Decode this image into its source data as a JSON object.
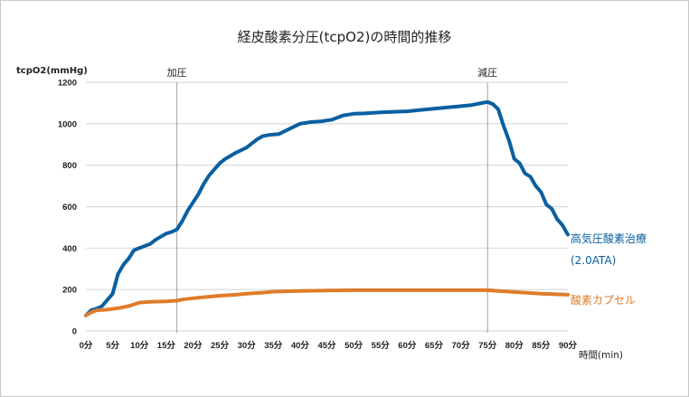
{
  "chart_data": {
    "type": "line",
    "title": "経皮酸素分圧(tcpO2)の時間的推移",
    "ylabel": "tcpO2(mmHg)",
    "xlabel": "時間(min)",
    "ylim": [
      0,
      1200
    ],
    "xlim": [
      0,
      90
    ],
    "yticks": [
      0,
      200,
      400,
      600,
      800,
      1000,
      1200
    ],
    "xticks": [
      0,
      5,
      10,
      15,
      20,
      25,
      30,
      35,
      40,
      45,
      50,
      55,
      60,
      65,
      70,
      75,
      80,
      85,
      90
    ],
    "xtick_labels": [
      "0分",
      "5分",
      "10分",
      "15分",
      "20分",
      "25分",
      "30分",
      "35分",
      "40分",
      "45分",
      "50分",
      "55分",
      "60分",
      "65分",
      "70分",
      "75分",
      "80分",
      "85分",
      "90分"
    ],
    "grid": true,
    "annotations": [
      {
        "label": "加圧",
        "x": 17
      },
      {
        "label": "減圧",
        "x": 75
      }
    ],
    "series": [
      {
        "name": "高気圧酸素治療",
        "name_line2": "(2.0ATA)",
        "color": "#0a5fa0",
        "x": [
          0,
          1,
          2,
          3,
          5,
          6,
          7,
          8,
          9,
          10,
          12,
          13,
          14,
          15,
          16,
          17,
          18,
          19,
          20,
          21,
          22,
          23,
          24,
          25,
          26,
          27,
          28,
          30,
          31,
          32,
          33,
          34,
          35,
          36,
          38,
          40,
          42,
          44,
          46,
          48,
          50,
          52,
          55,
          58,
          60,
          62,
          64,
          66,
          68,
          70,
          72,
          74,
          75,
          76,
          77,
          78,
          79,
          80,
          81,
          82,
          83,
          84,
          85,
          86,
          87,
          88,
          89,
          90
        ],
        "values": [
          75,
          100,
          108,
          120,
          180,
          275,
          320,
          350,
          390,
          400,
          420,
          440,
          455,
          470,
          478,
          490,
          530,
          580,
          620,
          660,
          710,
          750,
          780,
          810,
          830,
          845,
          860,
          885,
          905,
          925,
          940,
          945,
          948,
          950,
          975,
          1000,
          1008,
          1012,
          1020,
          1040,
          1048,
          1050,
          1055,
          1058,
          1060,
          1065,
          1070,
          1075,
          1080,
          1085,
          1090,
          1100,
          1105,
          1095,
          1070,
          990,
          920,
          830,
          810,
          760,
          745,
          700,
          670,
          610,
          590,
          540,
          510,
          465
        ]
      },
      {
        "name": "酸素カプセル",
        "color": "#e07b2a",
        "x": [
          0,
          1,
          2,
          4,
          6,
          8,
          10,
          12,
          15,
          17,
          18,
          20,
          22,
          25,
          28,
          30,
          33,
          35,
          40,
          45,
          50,
          55,
          60,
          65,
          70,
          75,
          77,
          80,
          85,
          90
        ],
        "values": [
          75,
          90,
          100,
          103,
          110,
          120,
          137,
          141,
          143,
          146,
          152,
          158,
          163,
          170,
          175,
          180,
          185,
          190,
          193,
          195,
          197,
          197,
          197,
          197,
          197,
          197,
          193,
          188,
          180,
          175
        ]
      }
    ]
  }
}
